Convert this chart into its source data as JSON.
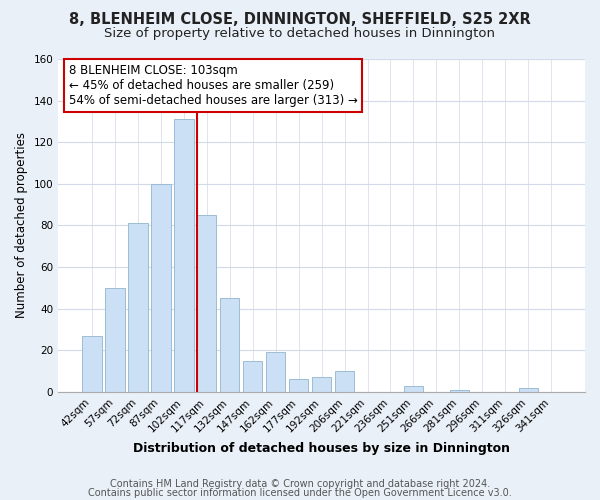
{
  "title1": "8, BLENHEIM CLOSE, DINNINGTON, SHEFFIELD, S25 2XR",
  "title2": "Size of property relative to detached houses in Dinnington",
  "xlabel": "Distribution of detached houses by size in Dinnington",
  "ylabel": "Number of detached properties",
  "bar_labels": [
    "42sqm",
    "57sqm",
    "72sqm",
    "87sqm",
    "102sqm",
    "117sqm",
    "132sqm",
    "147sqm",
    "162sqm",
    "177sqm",
    "192sqm",
    "206sqm",
    "221sqm",
    "236sqm",
    "251sqm",
    "266sqm",
    "281sqm",
    "296sqm",
    "311sqm",
    "326sqm",
    "341sqm"
  ],
  "bar_heights": [
    27,
    50,
    81,
    100,
    131,
    85,
    45,
    15,
    19,
    6,
    7,
    10,
    0,
    0,
    3,
    0,
    1,
    0,
    0,
    2,
    0
  ],
  "bar_color": "#cce0f5",
  "bar_edgecolor": "#9bbdd4",
  "vline_color": "#cc0000",
  "ylim": [
    0,
    160
  ],
  "yticks": [
    0,
    20,
    40,
    60,
    80,
    100,
    120,
    140,
    160
  ],
  "annotation_line1": "8 BLENHEIM CLOSE: 103sqm",
  "annotation_line2": "← 45% of detached houses are smaller (259)",
  "annotation_line3": "54% of semi-detached houses are larger (313) →",
  "annotation_box_edgecolor": "#cc0000",
  "footer1": "Contains HM Land Registry data © Crown copyright and database right 2024.",
  "footer2": "Contains public sector information licensed under the Open Government Licence v3.0.",
  "background_color": "#eaf0f8",
  "plot_bg_color": "#ffffff",
  "grid_color": "#d0dae8",
  "title1_fontsize": 10.5,
  "title2_fontsize": 9.5,
  "annotation_fontsize": 8.5,
  "xlabel_fontsize": 9,
  "ylabel_fontsize": 8.5,
  "footer_fontsize": 7,
  "tick_fontsize": 7.5
}
